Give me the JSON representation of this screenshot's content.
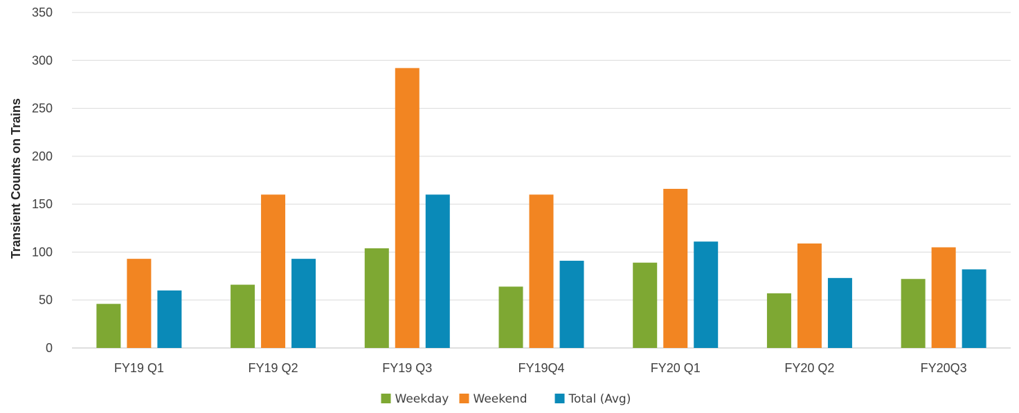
{
  "chart_data": {
    "type": "bar",
    "categories": [
      "FY19 Q1",
      "FY19 Q2",
      "FY19 Q3",
      "FY19Q4",
      "FY20 Q1",
      "FY20 Q2",
      "FY20Q3"
    ],
    "series": [
      {
        "name": "Weekday",
        "color": "#7ea833",
        "values": [
          46,
          66,
          104,
          64,
          89,
          57,
          72
        ]
      },
      {
        "name": "Weekend",
        "color": "#f28522",
        "values": [
          93,
          160,
          292,
          160,
          166,
          109,
          105
        ]
      },
      {
        "name": "Total (Avg)",
        "color": "#0a8ab8",
        "values": [
          60,
          93,
          160,
          91,
          111,
          73,
          82
        ]
      }
    ],
    "title": "",
    "xlabel": "",
    "ylabel": "Transient Counts on Trains",
    "ylim": [
      0,
      350
    ],
    "yticks": [
      0,
      50,
      100,
      150,
      200,
      250,
      300,
      350
    ],
    "grid": true,
    "legend_position": "bottom"
  }
}
